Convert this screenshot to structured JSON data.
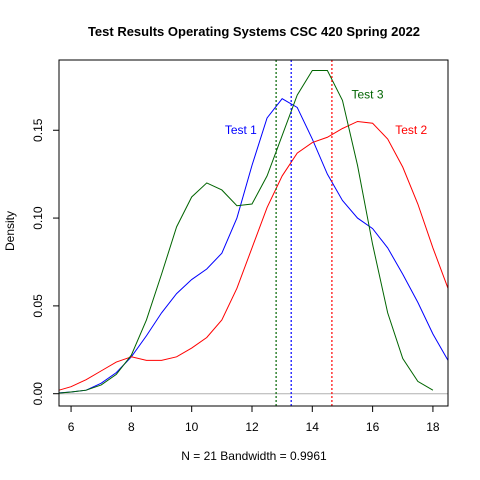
{
  "chart_data": {
    "type": "line",
    "title": "Test Results Operating Systems CSC 420 Spring 2022",
    "xlabel": "N = 21   Bandwidth = 0.9961",
    "ylabel": "Density",
    "xlim": [
      5.6,
      18.5
    ],
    "ylim": [
      -0.007,
      0.19
    ],
    "x_ticks": [
      {
        "value": 6,
        "label": "6"
      },
      {
        "value": 8,
        "label": "8"
      },
      {
        "value": 10,
        "label": "10"
      },
      {
        "value": 12,
        "label": "12"
      },
      {
        "value": 14,
        "label": "14"
      },
      {
        "value": 16,
        "label": "16"
      },
      {
        "value": 18,
        "label": "18"
      }
    ],
    "y_ticks": [
      {
        "value": 0.0,
        "label": "0.00"
      },
      {
        "value": 0.05,
        "label": "0.05"
      },
      {
        "value": 0.1,
        "label": "0.10"
      },
      {
        "value": 0.15,
        "label": "0.15"
      }
    ],
    "baseline": 0,
    "series": [
      {
        "name": "Test 1",
        "color": "#0000ff",
        "mean": 13.3,
        "label_pos": [
          11.1,
          0.148
        ],
        "points": [
          [
            5.6,
            0.0005
          ],
          [
            6,
            0.001
          ],
          [
            6.5,
            0.002
          ],
          [
            7,
            0.006
          ],
          [
            7.5,
            0.012
          ],
          [
            8,
            0.021
          ],
          [
            8.5,
            0.033
          ],
          [
            9,
            0.046
          ],
          [
            9.5,
            0.057
          ],
          [
            10,
            0.065
          ],
          [
            10.5,
            0.071
          ],
          [
            11,
            0.08
          ],
          [
            11.5,
            0.1
          ],
          [
            12,
            0.13
          ],
          [
            12.5,
            0.157
          ],
          [
            13,
            0.168
          ],
          [
            13.5,
            0.163
          ],
          [
            14,
            0.145
          ],
          [
            14.5,
            0.125
          ],
          [
            15,
            0.11
          ],
          [
            15.5,
            0.1
          ],
          [
            16,
            0.094
          ],
          [
            16.5,
            0.083
          ],
          [
            17,
            0.068
          ],
          [
            17.5,
            0.052
          ],
          [
            18,
            0.034
          ],
          [
            18.5,
            0.019
          ]
        ]
      },
      {
        "name": "Test 2",
        "color": "#ff0000",
        "mean": 14.65,
        "label_pos": [
          16.75,
          0.148
        ],
        "points": [
          [
            5.6,
            0.002
          ],
          [
            6,
            0.004
          ],
          [
            6.5,
            0.008
          ],
          [
            7,
            0.013
          ],
          [
            7.5,
            0.018
          ],
          [
            8,
            0.021
          ],
          [
            8.5,
            0.019
          ],
          [
            9,
            0.019
          ],
          [
            9.5,
            0.021
          ],
          [
            10,
            0.026
          ],
          [
            10.5,
            0.032
          ],
          [
            11,
            0.042
          ],
          [
            11.5,
            0.06
          ],
          [
            12,
            0.083
          ],
          [
            12.5,
            0.106
          ],
          [
            13,
            0.124
          ],
          [
            13.5,
            0.137
          ],
          [
            14,
            0.143
          ],
          [
            14.5,
            0.146
          ],
          [
            15,
            0.151
          ],
          [
            15.5,
            0.155
          ],
          [
            16,
            0.154
          ],
          [
            16.5,
            0.145
          ],
          [
            17,
            0.129
          ],
          [
            17.5,
            0.108
          ],
          [
            18,
            0.083
          ],
          [
            18.5,
            0.06
          ]
        ]
      },
      {
        "name": "Test 3",
        "color": "#006400",
        "mean": 12.8,
        "label_pos": [
          15.3,
          0.168
        ],
        "points": [
          [
            5.6,
            0.0003
          ],
          [
            6,
            0.001
          ],
          [
            6.5,
            0.002
          ],
          [
            7,
            0.005
          ],
          [
            7.5,
            0.011
          ],
          [
            8,
            0.022
          ],
          [
            8.5,
            0.042
          ],
          [
            9,
            0.068
          ],
          [
            9.5,
            0.095
          ],
          [
            10,
            0.112
          ],
          [
            10.5,
            0.12
          ],
          [
            11,
            0.116
          ],
          [
            11.5,
            0.107
          ],
          [
            12,
            0.108
          ],
          [
            12.5,
            0.124
          ],
          [
            13,
            0.147
          ],
          [
            13.5,
            0.17
          ],
          [
            14,
            0.184
          ],
          [
            14.5,
            0.184
          ],
          [
            15,
            0.167
          ],
          [
            15.5,
            0.13
          ],
          [
            16,
            0.085
          ],
          [
            16.5,
            0.046
          ],
          [
            17,
            0.02
          ],
          [
            17.5,
            0.007
          ],
          [
            18,
            0.002
          ]
        ]
      }
    ]
  }
}
